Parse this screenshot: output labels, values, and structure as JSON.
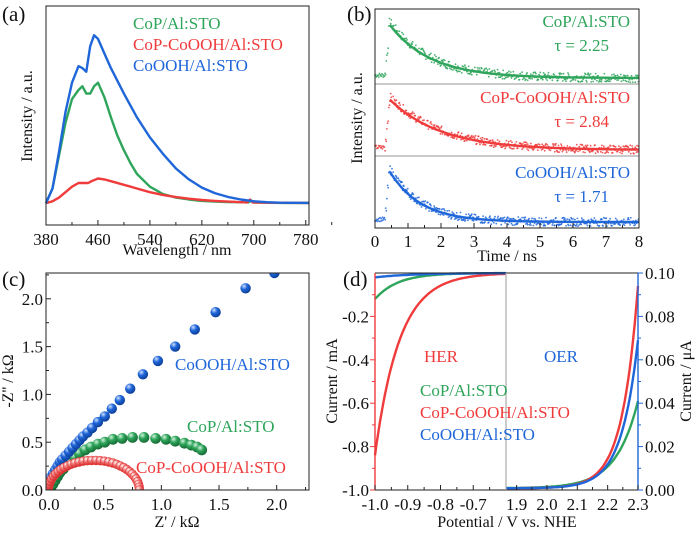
{
  "colors": {
    "green": "#2ea55a",
    "red": "#ef3b3b",
    "blue": "#1f66d9",
    "divider": "#aaaaaa"
  },
  "chart_data": [
    {
      "id": "a",
      "panel_label": "(a)",
      "type": "line",
      "xlabel": "Wavelength / nm",
      "ylabel": "Intensity / a.u.",
      "xlim": [
        380,
        785
      ],
      "ylim": [
        -0.12,
        1.08
      ],
      "xticks": [
        380,
        460,
        540,
        620,
        700,
        780
      ],
      "legend_position": "top-right",
      "series": [
        {
          "name": "CoP/Al:STO",
          "color": "green",
          "x": [
            380,
            390,
            400,
            410,
            420,
            430,
            436,
            442,
            448,
            454,
            460,
            470,
            480,
            490,
            500,
            510,
            520,
            540,
            560,
            580,
            600,
            620,
            640,
            660,
            680,
            692,
            696,
            700,
            720,
            740,
            760,
            785
          ],
          "y": [
            0,
            0.08,
            0.26,
            0.44,
            0.57,
            0.62,
            0.64,
            0.6,
            0.6,
            0.64,
            0.66,
            0.58,
            0.47,
            0.37,
            0.29,
            0.22,
            0.16,
            0.09,
            0.05,
            0.03,
            0.02,
            0.012,
            0.008,
            0.006,
            0.005,
            0.004,
            0.015,
            0.003,
            0.002,
            0.001,
            0.001,
            0.001
          ]
        },
        {
          "name": "CoP-CoOOH/Al:STO",
          "color": "red",
          "x": [
            380,
            390,
            400,
            410,
            420,
            430,
            440,
            445,
            450,
            460,
            470,
            480,
            500,
            520,
            540,
            560,
            580,
            600,
            620,
            640,
            660,
            680,
            690,
            694,
            698,
            720,
            760,
            785
          ],
          "y": [
            0,
            0.01,
            0.03,
            0.06,
            0.09,
            0.11,
            0.11,
            0.11,
            0.12,
            0.135,
            0.13,
            0.12,
            0.1,
            0.08,
            0.06,
            0.045,
            0.033,
            0.024,
            0.017,
            0.012,
            0.008,
            0.005,
            0.004,
            0.02,
            0.004,
            0.002,
            0.001,
            0.001
          ]
        },
        {
          "name": "CoOOH/Al:STO",
          "color": "blue",
          "x": [
            380,
            390,
            400,
            410,
            420,
            430,
            436,
            442,
            448,
            454,
            460,
            470,
            480,
            500,
            520,
            540,
            560,
            580,
            600,
            620,
            640,
            660,
            680,
            700,
            720,
            740,
            785
          ],
          "y": [
            0,
            0.08,
            0.28,
            0.5,
            0.66,
            0.75,
            0.74,
            0.72,
            0.86,
            0.92,
            0.9,
            0.82,
            0.74,
            0.6,
            0.47,
            0.36,
            0.27,
            0.19,
            0.13,
            0.085,
            0.055,
            0.034,
            0.02,
            0.01,
            0.005,
            0.002,
            0.001
          ]
        }
      ]
    },
    {
      "id": "b",
      "panel_label": "(b)",
      "type": "scatter",
      "xlabel": "Time / ns",
      "ylabel": "Intensity / a.u.",
      "xlim": [
        0,
        8
      ],
      "xticks": [
        0,
        1,
        2,
        3,
        4,
        5,
        6,
        7,
        8
      ],
      "stacked": true,
      "series": [
        {
          "name": "CoP/Al:STO",
          "color": "green",
          "tau_label": "τ = 2.25",
          "tau": 2.25,
          "peak_time": 0.45
        },
        {
          "name": "CoP-CoOOH/Al:STO",
          "color": "red",
          "tau_label": "τ = 2.84",
          "tau": 2.84,
          "peak_time": 0.45
        },
        {
          "name": "CoOOH/Al:STO",
          "color": "blue",
          "tau_label": "τ = 1.71",
          "tau": 1.71,
          "peak_time": 0.45
        }
      ]
    },
    {
      "id": "c",
      "panel_label": "(c)",
      "type": "scatter",
      "xlabel": "Z' / kΩ",
      "ylabel": "-Z'' / kΩ",
      "xlim": [
        0,
        2.28
      ],
      "ylim": [
        0,
        2.27
      ],
      "xticks": [
        0.0,
        0.5,
        1.0,
        1.5,
        2.0
      ],
      "yticks": [
        0.0,
        0.5,
        1.0,
        1.5,
        2.0
      ],
      "series": [
        {
          "name": "CoOOH/Al:STO",
          "color": "blue",
          "x": [
            0.02,
            0.04,
            0.06,
            0.08,
            0.1,
            0.12,
            0.14,
            0.17,
            0.2,
            0.23,
            0.26,
            0.29,
            0.32,
            0.36,
            0.4,
            0.45,
            0.51,
            0.57,
            0.64,
            0.73,
            0.84,
            0.97,
            1.12,
            1.29,
            1.47,
            1.73,
            1.98
          ],
          "y": [
            0.08,
            0.13,
            0.17,
            0.21,
            0.25,
            0.29,
            0.32,
            0.36,
            0.4,
            0.44,
            0.48,
            0.52,
            0.56,
            0.6,
            0.65,
            0.71,
            0.77,
            0.85,
            0.94,
            1.06,
            1.21,
            1.35,
            1.5,
            1.68,
            1.86,
            2.11,
            2.27
          ]
        },
        {
          "name": "CoP/Al:STO",
          "color": "green",
          "x": [
            0.04,
            0.06,
            0.08,
            0.1,
            0.12,
            0.15,
            0.18,
            0.21,
            0.25,
            0.29,
            0.34,
            0.39,
            0.45,
            0.51,
            0.58,
            0.66,
            0.75,
            0.85,
            0.95,
            1.04,
            1.12,
            1.2,
            1.26,
            1.31,
            1.35
          ],
          "y": [
            0.02,
            0.06,
            0.1,
            0.14,
            0.18,
            0.22,
            0.26,
            0.3,
            0.34,
            0.38,
            0.42,
            0.45,
            0.48,
            0.5,
            0.53,
            0.54,
            0.55,
            0.55,
            0.54,
            0.53,
            0.51,
            0.49,
            0.47,
            0.45,
            0.42
          ]
        }
      ],
      "semicircle": {
        "name": "CoP-CoOOH/Al:STO",
        "color": "red",
        "z_start": 0.02,
        "z_end": 0.81,
        "peak": 0.31,
        "points": 34
      },
      "legend_labels": [
        {
          "name": "CoOOH/Al:STO",
          "color": "blue"
        },
        {
          "name": "CoP/Al:STO",
          "color": "green"
        },
        {
          "name": "CoP-CoOOH/Al:STO",
          "color": "red"
        }
      ]
    },
    {
      "id": "d",
      "panel_label": "(d)",
      "type": "line",
      "xlabel": "Potential / V vs. NHE",
      "ylabel_left": "Current / mA",
      "ylabel_right": "Current / μA",
      "her": {
        "label": "HER",
        "xlim": [
          -1.0,
          -0.6
        ],
        "ylim": [
          -1.0,
          0.0
        ],
        "xticks": [
          -1.0,
          -0.9,
          -0.8,
          -0.7
        ],
        "yticks": [
          -1.0,
          -0.8,
          -0.6,
          -0.4,
          -0.2
        ],
        "series": [
          {
            "name": "CoP/Al:STO",
            "color": "green",
            "start": -0.12,
            "decay": 0.07
          },
          {
            "name": "CoP-CoOOH/Al:STO",
            "color": "red",
            "start": -0.84,
            "decay": 0.075
          },
          {
            "name": "CoOOH/Al:STO",
            "color": "blue",
            "start": -0.02,
            "decay": 0.12
          }
        ]
      },
      "oer": {
        "label": "OER",
        "xlim": [
          1.865,
          2.3
        ],
        "ylim": [
          0.0,
          0.1
        ],
        "xticks": [
          1.9,
          2.0,
          2.1,
          2.2,
          2.3
        ],
        "yticks": [
          0.0,
          0.02,
          0.04,
          0.06,
          0.08,
          0.1
        ],
        "series": [
          {
            "name": "CoP/Al:STO",
            "color": "green",
            "end": 0.041,
            "steep": 0.072
          },
          {
            "name": "CoP-CoOOH/Al:STO",
            "color": "red",
            "end": 0.094,
            "steep": 0.052
          },
          {
            "name": "CoOOH/Al:STO",
            "color": "blue",
            "end": 0.069,
            "steep": 0.055
          }
        ]
      },
      "legend_labels": [
        {
          "name": "CoP/Al:STO",
          "color": "green"
        },
        {
          "name": "CoP-CoOOH/Al:STO",
          "color": "red"
        },
        {
          "name": "CoOOH/Al:STO",
          "color": "blue"
        }
      ]
    }
  ]
}
